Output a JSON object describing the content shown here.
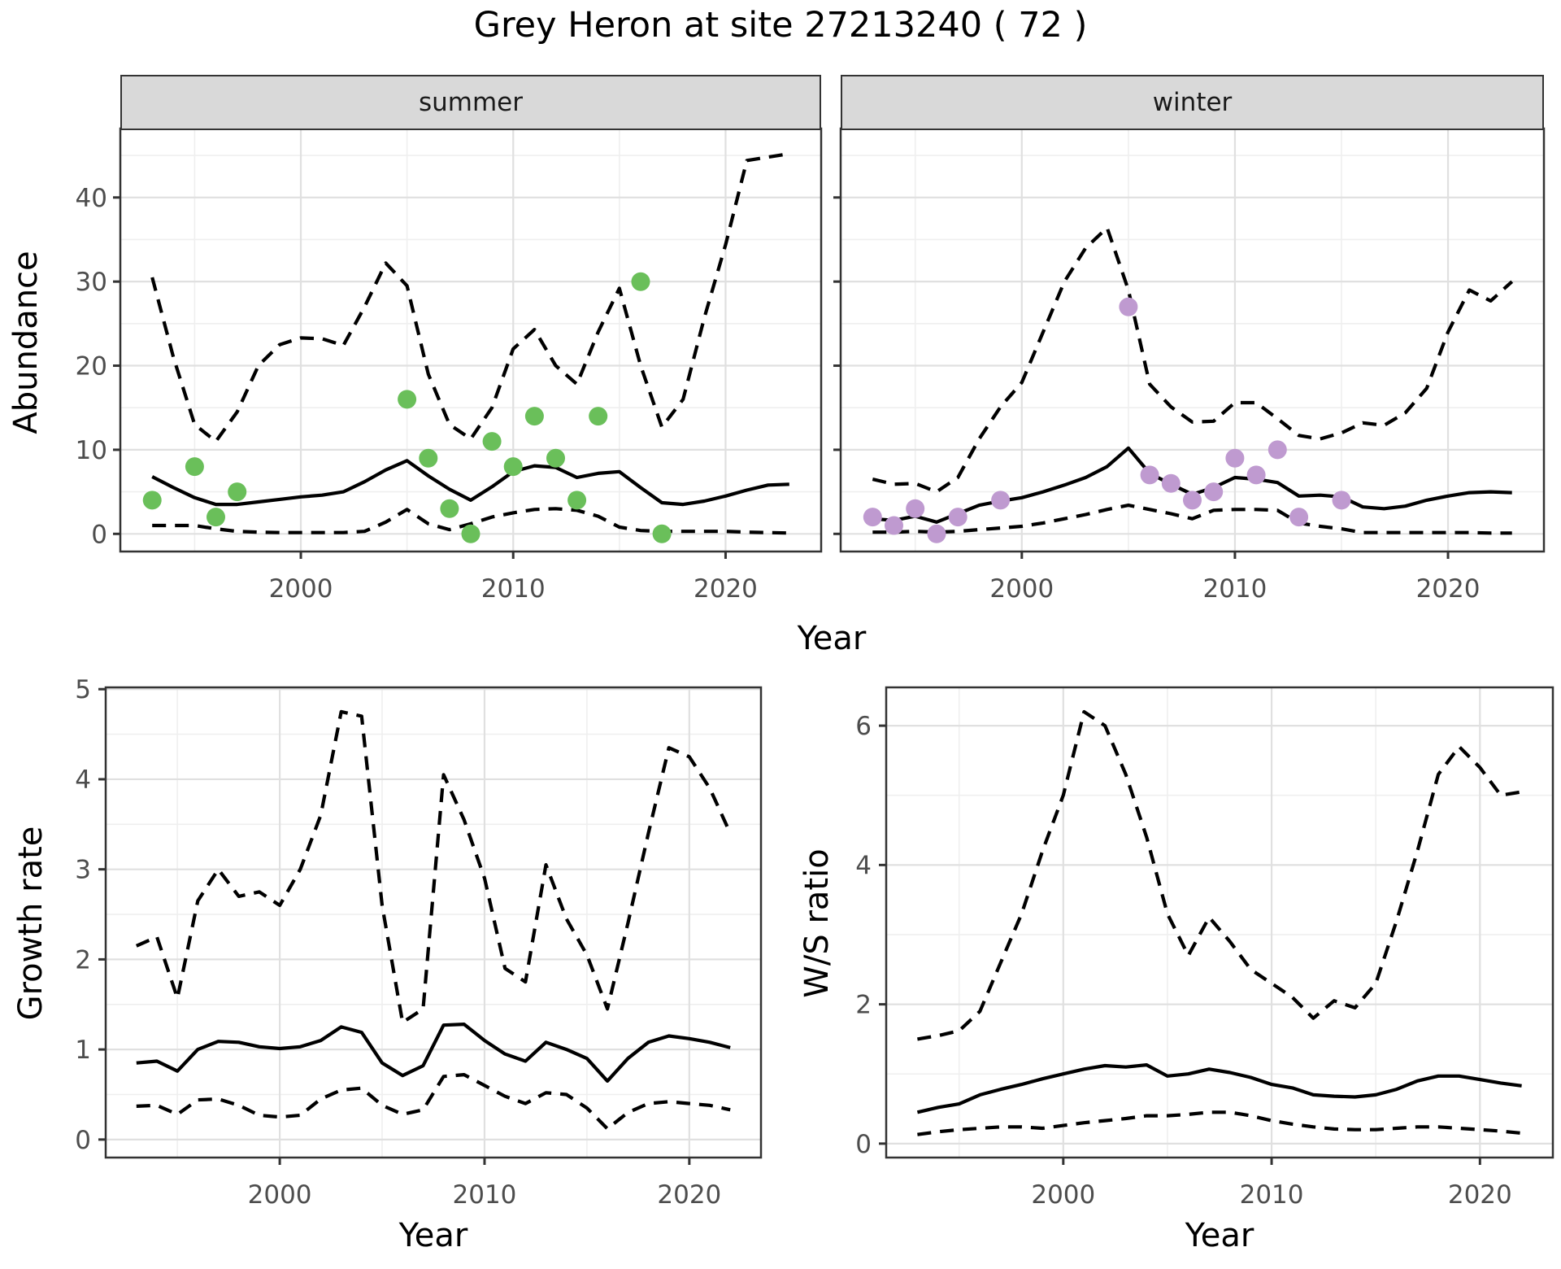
{
  "title": "Grey Heron at site 27213240 ( 72 )",
  "facets": {
    "summer": "summer",
    "winter": "winter"
  },
  "axes": {
    "abundance_label": "Abundance",
    "year_label": "Year",
    "growth_label": "Growth rate",
    "ws_label": "W/S ratio"
  },
  "colors": {
    "summer_points": "#6abf5a",
    "winter_points": "#bf9ad0",
    "line": "#000000",
    "panel_border": "#333333",
    "grid_major": "#e0e0e0",
    "grid_minor": "#efefef",
    "tick_text": "#4d4d4d",
    "strip_bg": "#d9d9d9"
  },
  "chart_data": [
    {
      "type": "line",
      "panel": "abundance-summer",
      "facet_label": "summer",
      "ylabel": "Abundance",
      "xlabel": "Year",
      "x_domain": [
        1991.5,
        2024.5
      ],
      "y_domain": [
        -2.1,
        48.2
      ],
      "x_ticks": [
        2000,
        2010,
        2020
      ],
      "x_minor": [
        1995,
        2005,
        2015
      ],
      "y_ticks": [
        0,
        10,
        20,
        30,
        40
      ],
      "y_minor": [
        5,
        15,
        25,
        35,
        45
      ],
      "show_y_tick_labels": true,
      "series": [
        {
          "name": "median",
          "style": "solid",
          "x": [
            1993,
            1994,
            1995,
            1996,
            1997,
            1998,
            1999,
            2000,
            2001,
            2002,
            2003,
            2004,
            2005,
            2006,
            2007,
            2008,
            2009,
            2010,
            2011,
            2012,
            2013,
            2014,
            2015,
            2016,
            2017,
            2018,
            2019,
            2020,
            2021,
            2022,
            2023
          ],
          "y": [
            6.8,
            5.5,
            4.3,
            3.5,
            3.5,
            3.8,
            4.1,
            4.4,
            4.6,
            5.0,
            6.2,
            7.6,
            8.7,
            6.9,
            5.3,
            4.0,
            5.6,
            7.4,
            8.1,
            7.9,
            6.7,
            7.2,
            7.4,
            5.5,
            3.7,
            3.5,
            3.9,
            4.5,
            5.2,
            5.8,
            5.9
          ]
        },
        {
          "name": "upper_ci",
          "style": "dashed",
          "x": [
            1993,
            1994,
            1995,
            1996,
            1997,
            1998,
            1999,
            2000,
            2001,
            2002,
            2003,
            2004,
            2005,
            2006,
            2007,
            2008,
            2009,
            2010,
            2011,
            2012,
            2013,
            2014,
            2015,
            2016,
            2017,
            2018,
            2019,
            2020,
            2021,
            2022,
            2023
          ],
          "y": [
            30.5,
            21,
            13,
            11,
            14.5,
            20,
            22.5,
            23.3,
            23.2,
            22.4,
            27,
            32.2,
            29.5,
            19,
            13,
            11.3,
            15,
            22,
            24.3,
            20,
            17.8,
            24,
            29.2,
            20,
            12.7,
            16,
            25.7,
            34.4,
            44.4,
            44.8,
            45.2
          ]
        },
        {
          "name": "lower_ci",
          "style": "dashed",
          "x": [
            1993,
            1994,
            1995,
            1996,
            1997,
            1998,
            1999,
            2000,
            2001,
            2002,
            2003,
            2004,
            2005,
            2006,
            2007,
            2008,
            2009,
            2010,
            2011,
            2012,
            2013,
            2014,
            2015,
            2016,
            2017,
            2018,
            2019,
            2020,
            2021,
            2022,
            2023
          ],
          "y": [
            1.0,
            1.0,
            1.0,
            0.6,
            0.3,
            0.2,
            0.15,
            0.15,
            0.15,
            0.15,
            0.3,
            1.4,
            2.9,
            1.2,
            0.5,
            1.2,
            2.0,
            2.5,
            2.9,
            3.0,
            2.8,
            2.1,
            0.8,
            0.4,
            0.3,
            0.3,
            0.3,
            0.3,
            0.2,
            0.15,
            0.1
          ]
        }
      ],
      "points": {
        "name": "summer-observed-counts",
        "color": "#6abf5a",
        "x": [
          1993,
          1995,
          1996,
          1997,
          2005,
          2006,
          2007,
          2008,
          2009,
          2010,
          2011,
          2012,
          2013,
          2014,
          2016,
          2017
        ],
        "y": [
          4,
          8,
          2,
          5,
          16,
          9,
          3,
          0,
          11,
          8,
          14,
          9,
          4,
          14,
          30,
          0
        ]
      }
    },
    {
      "type": "line",
      "panel": "abundance-winter",
      "facet_label": "winter",
      "ylabel": "Abundance",
      "xlabel": "Year",
      "x_domain": [
        1991.5,
        2024.5
      ],
      "y_domain": [
        -2.1,
        48.2
      ],
      "x_ticks": [
        2000,
        2010,
        2020
      ],
      "x_minor": [
        1995,
        2005,
        2015
      ],
      "y_ticks": [
        0,
        10,
        20,
        30,
        40
      ],
      "y_minor": [
        5,
        15,
        25,
        35,
        45
      ],
      "show_y_tick_labels": false,
      "series": [
        {
          "name": "median",
          "style": "solid",
          "x": [
            1993,
            1994,
            1995,
            1996,
            1997,
            1998,
            1999,
            2000,
            2001,
            2002,
            2003,
            2004,
            2005,
            2006,
            2007,
            2008,
            2009,
            2010,
            2011,
            2012,
            2013,
            2014,
            2015,
            2016,
            2017,
            2018,
            2019,
            2020,
            2021,
            2022,
            2023
          ],
          "y": [
            1.8,
            1.6,
            2.1,
            1.4,
            2.4,
            3.4,
            3.9,
            4.3,
            5.0,
            5.8,
            6.7,
            8.0,
            10.2,
            7.2,
            5.9,
            4.7,
            5.5,
            6.7,
            6.5,
            6.1,
            4.5,
            4.6,
            4.4,
            3.2,
            3.0,
            3.3,
            4.0,
            4.5,
            4.9,
            5.0,
            4.9
          ]
        },
        {
          "name": "upper_ci",
          "style": "dashed",
          "x": [
            1993,
            1994,
            1995,
            1996,
            1997,
            1998,
            1999,
            2000,
            2001,
            2002,
            2003,
            2004,
            2005,
            2006,
            2007,
            2008,
            2009,
            2010,
            2011,
            2012,
            2013,
            2014,
            2015,
            2016,
            2017,
            2018,
            2019,
            2020,
            2021,
            2022,
            2023
          ],
          "y": [
            6.5,
            5.9,
            6.0,
            5.0,
            6.7,
            11.3,
            15.1,
            18,
            24,
            30,
            34,
            36.4,
            29,
            17.8,
            15.1,
            13.3,
            13.4,
            15.6,
            15.6,
            13.7,
            11.7,
            11.3,
            12.0,
            13.2,
            12.9,
            14.4,
            17.3,
            24,
            29,
            27.7,
            30
          ]
        },
        {
          "name": "lower_ci",
          "style": "dashed",
          "x": [
            1993,
            1994,
            1995,
            1996,
            1997,
            1998,
            1999,
            2000,
            2001,
            2002,
            2003,
            2004,
            2005,
            2006,
            2007,
            2008,
            2009,
            2010,
            2011,
            2012,
            2013,
            2014,
            2015,
            2016,
            2017,
            2018,
            2019,
            2020,
            2021,
            2022,
            2023
          ],
          "y": [
            0.2,
            0.2,
            0.3,
            0.2,
            0.3,
            0.5,
            0.7,
            0.9,
            1.3,
            1.8,
            2.3,
            2.9,
            3.4,
            2.9,
            2.4,
            1.8,
            2.8,
            2.9,
            2.9,
            2.8,
            1.3,
            0.9,
            0.6,
            0.15,
            0.15,
            0.15,
            0.15,
            0.15,
            0.15,
            0.1,
            0.1
          ]
        }
      ],
      "points": {
        "name": "winter-observed-counts",
        "color": "#bf9ad0",
        "x": [
          1993,
          1994,
          1995,
          1996,
          1997,
          1999,
          2005,
          2006,
          2007,
          2008,
          2009,
          2010,
          2011,
          2012,
          2013,
          2015
        ],
        "y": [
          2,
          1,
          3,
          0,
          2,
          4,
          27,
          7,
          6,
          4,
          5,
          9,
          7,
          10,
          2,
          4
        ]
      }
    },
    {
      "type": "line",
      "panel": "growth-rate",
      "facet_label": "",
      "ylabel": "Growth rate",
      "xlabel": "Year",
      "x_domain": [
        1991.5,
        2023.5
      ],
      "y_domain": [
        -0.2,
        5.02
      ],
      "x_ticks": [
        2000,
        2010,
        2020
      ],
      "x_minor": [
        1995,
        2005,
        2015
      ],
      "y_ticks": [
        0,
        1,
        2,
        3,
        4,
        5
      ],
      "y_minor": [
        0.5,
        1.5,
        2.5,
        3.5,
        4.5
      ],
      "show_y_tick_labels": true,
      "series": [
        {
          "name": "median",
          "style": "solid",
          "x": [
            1993,
            1994,
            1995,
            1996,
            1997,
            1998,
            1999,
            2000,
            2001,
            2002,
            2003,
            2004,
            2005,
            2006,
            2007,
            2008,
            2009,
            2010,
            2011,
            2012,
            2013,
            2014,
            2015,
            2016,
            2017,
            2018,
            2019,
            2020,
            2021,
            2022
          ],
          "y": [
            0.85,
            0.87,
            0.76,
            1.0,
            1.09,
            1.08,
            1.03,
            1.01,
            1.03,
            1.1,
            1.25,
            1.19,
            0.85,
            0.71,
            0.82,
            1.27,
            1.28,
            1.1,
            0.95,
            0.87,
            1.08,
            1.0,
            0.9,
            0.65,
            0.9,
            1.08,
            1.15,
            1.12,
            1.08,
            1.02
          ]
        },
        {
          "name": "upper_ci",
          "style": "dashed",
          "x": [
            1993,
            1994,
            1995,
            1996,
            1997,
            1998,
            1999,
            2000,
            2001,
            2002,
            2003,
            2004,
            2005,
            2006,
            2007,
            2008,
            2009,
            2010,
            2011,
            2012,
            2013,
            2014,
            2015,
            2016,
            2017,
            2018,
            2019,
            2020,
            2021,
            2022
          ],
          "y": [
            2.15,
            2.25,
            1.57,
            2.65,
            3.0,
            2.7,
            2.75,
            2.6,
            3.0,
            3.6,
            4.75,
            4.7,
            2.6,
            1.3,
            1.45,
            4.05,
            3.55,
            2.9,
            1.9,
            1.75,
            3.05,
            2.45,
            2.05,
            1.45,
            2.4,
            3.4,
            4.35,
            4.25,
            3.9,
            3.4
          ]
        },
        {
          "name": "lower_ci",
          "style": "dashed",
          "x": [
            1993,
            1994,
            1995,
            1996,
            1997,
            1998,
            1999,
            2000,
            2001,
            2002,
            2003,
            2004,
            2005,
            2006,
            2007,
            2008,
            2009,
            2010,
            2011,
            2012,
            2013,
            2014,
            2015,
            2016,
            2017,
            2018,
            2019,
            2020,
            2021,
            2022
          ],
          "y": [
            0.37,
            0.38,
            0.28,
            0.44,
            0.45,
            0.38,
            0.27,
            0.25,
            0.27,
            0.45,
            0.55,
            0.57,
            0.38,
            0.28,
            0.33,
            0.7,
            0.72,
            0.6,
            0.48,
            0.4,
            0.52,
            0.5,
            0.35,
            0.12,
            0.3,
            0.4,
            0.42,
            0.4,
            0.38,
            0.33
          ]
        }
      ],
      "points": null
    },
    {
      "type": "line",
      "panel": "ws-ratio",
      "facet_label": "",
      "ylabel": "W/S ratio",
      "xlabel": "Year",
      "x_domain": [
        1991.5,
        2023.5
      ],
      "y_domain": [
        -0.2,
        6.55
      ],
      "x_ticks": [
        2000,
        2010,
        2020
      ],
      "x_minor": [
        1995,
        2005,
        2015
      ],
      "y_ticks": [
        0,
        2,
        4,
        6
      ],
      "y_minor": [
        1,
        3,
        5
      ],
      "show_y_tick_labels": true,
      "series": [
        {
          "name": "median",
          "style": "solid",
          "x": [
            1993,
            1994,
            1995,
            1996,
            1997,
            1998,
            1999,
            2000,
            2001,
            2002,
            2003,
            2004,
            2005,
            2006,
            2007,
            2008,
            2009,
            2010,
            2011,
            2012,
            2013,
            2014,
            2015,
            2016,
            2017,
            2018,
            2019,
            2020,
            2021,
            2022
          ],
          "y": [
            0.45,
            0.52,
            0.57,
            0.7,
            0.78,
            0.85,
            0.93,
            1.0,
            1.07,
            1.12,
            1.1,
            1.13,
            0.97,
            1.0,
            1.07,
            1.02,
            0.95,
            0.85,
            0.8,
            0.7,
            0.68,
            0.67,
            0.7,
            0.78,
            0.9,
            0.97,
            0.97,
            0.92,
            0.87,
            0.83
          ]
        },
        {
          "name": "upper_ci",
          "style": "dashed",
          "x": [
            1993,
            1994,
            1995,
            1996,
            1997,
            1998,
            1999,
            2000,
            2001,
            2002,
            2003,
            2004,
            2005,
            2006,
            2007,
            2008,
            2009,
            2010,
            2011,
            2012,
            2013,
            2014,
            2015,
            2016,
            2017,
            2018,
            2019,
            2020,
            2021,
            2022
          ],
          "y": [
            1.5,
            1.55,
            1.62,
            1.9,
            2.6,
            3.3,
            4.2,
            5.0,
            6.2,
            6.0,
            5.3,
            4.4,
            3.3,
            2.7,
            3.25,
            2.9,
            2.5,
            2.3,
            2.1,
            1.8,
            2.05,
            1.95,
            2.3,
            3.2,
            4.2,
            5.3,
            5.7,
            5.4,
            5.0,
            5.05
          ]
        },
        {
          "name": "lower_ci",
          "style": "dashed",
          "x": [
            1993,
            1994,
            1995,
            1996,
            1997,
            1998,
            1999,
            2000,
            2001,
            2002,
            2003,
            2004,
            2005,
            2006,
            2007,
            2008,
            2009,
            2010,
            2011,
            2012,
            2013,
            2014,
            2015,
            2016,
            2017,
            2018,
            2019,
            2020,
            2021,
            2022
          ],
          "y": [
            0.13,
            0.17,
            0.2,
            0.22,
            0.24,
            0.24,
            0.22,
            0.26,
            0.3,
            0.33,
            0.36,
            0.4,
            0.4,
            0.42,
            0.45,
            0.45,
            0.4,
            0.33,
            0.28,
            0.24,
            0.21,
            0.2,
            0.2,
            0.22,
            0.24,
            0.24,
            0.22,
            0.2,
            0.18,
            0.15
          ]
        }
      ],
      "points": null
    }
  ]
}
